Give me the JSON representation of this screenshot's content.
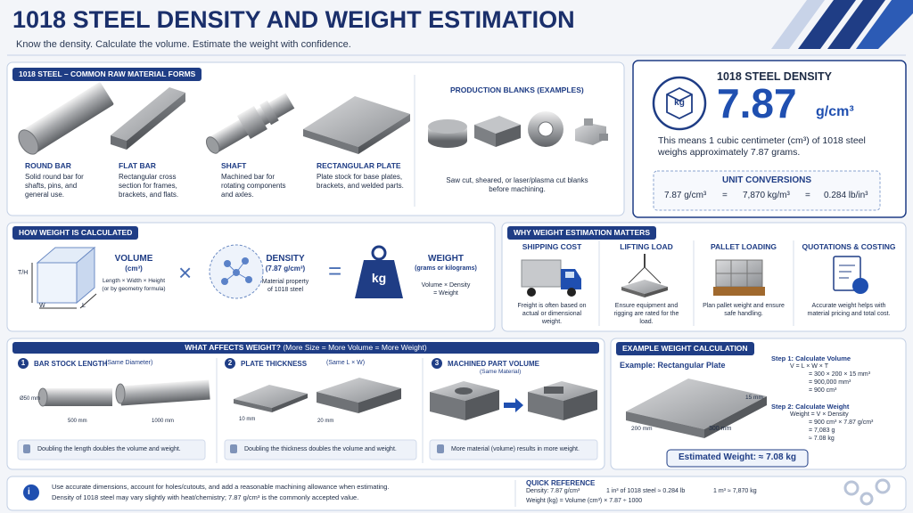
{
  "header": {
    "title": "1018 STEEL DENSITY AND WEIGHT ESTIMATION",
    "subtitle": "Know the density. Calculate the volume. Estimate the weight with confidence."
  },
  "raw_forms": {
    "heading": "1018 STEEL – COMMON RAW MATERIAL FORMS",
    "items": [
      {
        "name": "ROUND BAR",
        "description": "Solid round bar for shafts, pins, and general use."
      },
      {
        "name": "FLAT BAR",
        "description": "Rectangular cross section for frames, brackets, and flats."
      },
      {
        "name": "SHAFT",
        "description": "Machined bar for rotating components and axles."
      },
      {
        "name": "RECTANGULAR PLATE",
        "description": "Plate stock for base plates, brackets, and welded parts."
      }
    ],
    "blanks": {
      "heading": "PRODUCTION BLANKS (EXAMPLES)",
      "description": "Saw cut, sheared, or laser/plasma cut blanks before machining."
    }
  },
  "density": {
    "heading": "1018 STEEL DENSITY",
    "icon_label": "kg",
    "value": "7.87",
    "unit": "g/cm³",
    "description": "This means 1 cubic centimeter (cm³) of 1018 steel weighs approximately 7.87 grams.",
    "conversions": {
      "heading": "UNIT CONVERSIONS",
      "separator": "=",
      "items": [
        "7.87 g/cm³",
        "7,870 kg/m³",
        "0.284 lb/in³"
      ]
    }
  },
  "calculation": {
    "heading": "HOW WEIGHT IS CALCULATED",
    "volume": {
      "title": "VOLUME",
      "unit": "(cm³)",
      "formula": "Length × Width × Height",
      "note": "(or by geometry formula)",
      "axes": [
        "T/H",
        "W",
        "L"
      ]
    },
    "times": "×",
    "density": {
      "title": "DENSITY",
      "value": "(7.87 g/cm³)",
      "description": "Material property of 1018 steel"
    },
    "equals": "=",
    "weight": {
      "title": "WEIGHT",
      "unit": "(grams or kilograms)",
      "formula": "Volume × Density = Weight"
    }
  },
  "importance": {
    "heading": "WHY WEIGHT ESTIMATION MATTERS",
    "items": [
      {
        "title": "SHIPPING COST",
        "description": "Freight is often based on actual or dimensional weight."
      },
      {
        "title": "LIFTING LOAD",
        "description": "Ensure equipment and rigging are rated for the load."
      },
      {
        "title": "PALLET LOADING",
        "description": "Plan pallet weight and ensure safe handling."
      },
      {
        "title": "QUOTATIONS & COSTING",
        "description": "Accurate weight helps with material pricing and total cost."
      }
    ]
  },
  "factors": {
    "heading": "WHAT AFFECTS WEIGHT?",
    "subheading": "(More Size = More Volume = More Weight)",
    "sections": [
      {
        "number": "1",
        "title": "BAR STOCK LENGTH",
        "qualifier": "(Same Diameter)",
        "labels": [
          "Ø50 mm",
          "500 mm",
          "1000 mm"
        ],
        "note": "Doubling the length doubles the volume and weight."
      },
      {
        "number": "2",
        "title": "PLATE THICKNESS",
        "qualifier": "(Same L × W)",
        "labels": [
          "10 mm",
          "20 mm"
        ],
        "note": "Doubling the thickness doubles the volume and weight."
      },
      {
        "number": "3",
        "title": "MACHINED PART VOLUME",
        "qualifier": "(Same Material)",
        "labels": [],
        "note": "More material (volume) results in more weight."
      }
    ]
  },
  "example": {
    "heading": "EXAMPLE WEIGHT CALCULATION",
    "subtitle": "Example: Rectangular Plate",
    "dimensions": [
      "15 mm",
      "200 mm",
      "300 mm"
    ],
    "steps": [
      {
        "title": "Step 1:  Calculate Volume",
        "lines": [
          "V   = L × W × T",
          "= 300 × 200 × 15 mm³",
          "= 900,000 mm³",
          "= 900 cm³"
        ]
      },
      {
        "title": "Step 2:  Calculate Weight",
        "lines": [
          "Weight = V × Density",
          "= 900 cm³ × 7.87 g/cm³",
          "= 7,083 g",
          "≈ 7.08 kg"
        ]
      }
    ],
    "result": "Estimated Weight:  ≈ 7.08 kg"
  },
  "footer": {
    "notes": [
      "Use accurate dimensions, account for holes/cutouts, and add a reasonable machining allowance when estimating.",
      "Density of 1018 steel may vary slightly with heat/chemistry; 7.87 g/cm³ is the commonly accepted value."
    ],
    "quick_reference": {
      "heading": "QUICK REFERENCE",
      "items": [
        "Density: 7.87 g/cm³",
        "1 in³ of 1018 steel ≈ 0.284 lb",
        "1 m³ ≈ 7,870 kg",
        "Weight (kg) = Volume (cm³) × 7.87 ÷ 1000"
      ]
    }
  }
}
